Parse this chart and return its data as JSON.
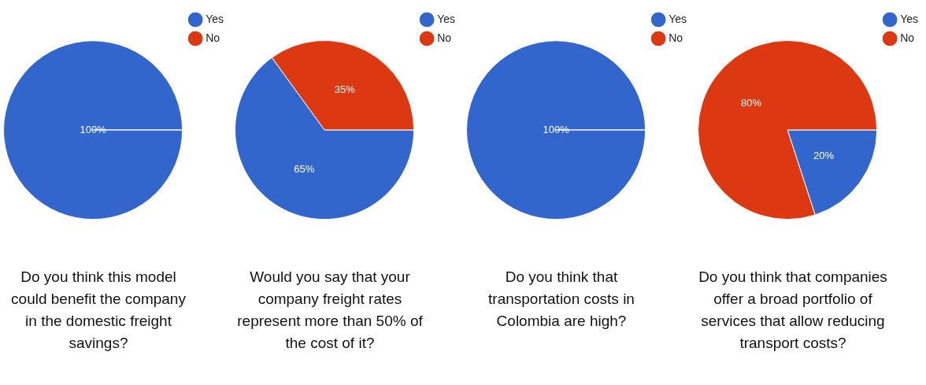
{
  "chart_data": [
    {
      "type": "pie",
      "title": "Do you think this model could benefit the company in the domestic freight savings?",
      "categories": [
        "Yes",
        "No"
      ],
      "values": [
        100,
        0
      ],
      "colors": [
        "#3366cc",
        "#dc3912"
      ],
      "value_labels": [
        "100%",
        null
      ],
      "legend": "top right"
    },
    {
      "type": "pie",
      "title": "Would you say that your company freight rates represent more than 50% of the cost of it?",
      "categories": [
        "Yes",
        "No"
      ],
      "values": [
        65,
        35
      ],
      "colors": [
        "#3366cc",
        "#dc3912"
      ],
      "value_labels": [
        "65%",
        "35%"
      ],
      "legend": "top right"
    },
    {
      "type": "pie",
      "title": "Do you think that transportation costs in Colombia are high?",
      "categories": [
        "Yes",
        "No"
      ],
      "values": [
        100,
        0
      ],
      "colors": [
        "#3366cc",
        "#dc3912"
      ],
      "value_labels": [
        "100%",
        null
      ],
      "legend": "top right"
    },
    {
      "type": "pie",
      "title": "Do you think that companies offer a broad portfolio of services that allow reducing transport costs?",
      "categories": [
        "Yes",
        "No"
      ],
      "values": [
        20,
        80
      ],
      "colors": [
        "#3366cc",
        "#dc3912"
      ],
      "value_labels": [
        "20%",
        "80%"
      ],
      "legend": "top right"
    }
  ]
}
